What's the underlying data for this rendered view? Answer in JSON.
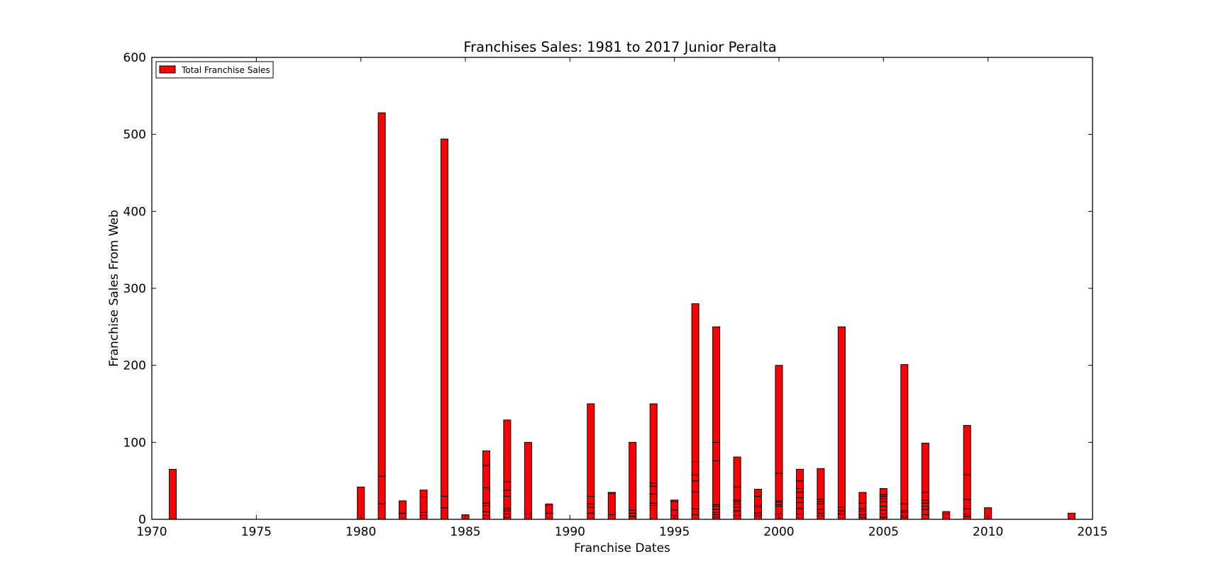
{
  "chart_data": {
    "type": "bar",
    "title": "Franchises Sales: 1981 to 2017 Junior Peralta",
    "xlabel": "Franchise Dates",
    "ylabel": "Franchise Sales From Web",
    "xlim": [
      1970,
      2015
    ],
    "ylim": [
      0,
      600
    ],
    "xticks": [
      "1970",
      "1975",
      "1980",
      "1985",
      "1990",
      "1995",
      "2000",
      "2005",
      "2010",
      "2015"
    ],
    "yticks": [
      "0",
      "100",
      "200",
      "300",
      "400",
      "500",
      "600"
    ],
    "grid": false,
    "legend": {
      "position": "top-left",
      "entries": [
        "Total Franchise Sales"
      ]
    },
    "bar_color": "#ff0000",
    "edge_color": "#000000",
    "series": [
      {
        "name": "Total Franchise Sales",
        "bars": [
          {
            "x": 1971,
            "stack": [
              65
            ]
          },
          {
            "x": 1980,
            "stack": [
              42
            ]
          },
          {
            "x": 1981,
            "stack": [
              20,
              36,
              472
            ]
          },
          {
            "x": 1982,
            "stack": [
              8,
              16
            ]
          },
          {
            "x": 1983,
            "stack": [
              5,
              4,
              20,
              9
            ]
          },
          {
            "x": 1984,
            "stack": [
              15,
              15,
              464
            ]
          },
          {
            "x": 1985,
            "stack": [
              6
            ]
          },
          {
            "x": 1986,
            "stack": [
              5,
              5,
              8,
              3,
              20,
              29,
              19
            ]
          },
          {
            "x": 1987,
            "stack": [
              3,
              4,
              4,
              3,
              16,
              8,
              11,
              80
            ]
          },
          {
            "x": 1988,
            "stack": [
              7,
              93
            ]
          },
          {
            "x": 1989,
            "stack": [
              8,
              10,
              2
            ]
          },
          {
            "x": 1991,
            "stack": [
              8,
              8,
              4,
              10,
              120
            ]
          },
          {
            "x": 1992,
            "stack": [
              6,
              28,
              1
            ]
          },
          {
            "x": 1993,
            "stack": [
              4,
              4,
              4,
              88
            ]
          },
          {
            "x": 1994,
            "stack": [
              18,
              3,
              12,
              10,
              4,
              103
            ]
          },
          {
            "x": 1995,
            "stack": [
              5,
              7,
              11,
              2
            ]
          },
          {
            "x": 1996,
            "stack": [
              6,
              8,
              22,
              14,
              8,
              17,
              205
            ]
          },
          {
            "x": 1997,
            "stack": [
              3,
              3,
              3,
              4,
              4,
              2,
              57,
              24,
              150
            ]
          },
          {
            "x": 1998,
            "stack": [
              5,
              6,
              5,
              4,
              3,
              2,
              17,
              39
            ]
          },
          {
            "x": 1999,
            "stack": [
              5,
              3,
              8,
              2,
              12,
              9
            ]
          },
          {
            "x": 2000,
            "stack": [
              7,
              10,
              2,
              3,
              2,
              36,
              140
            ]
          },
          {
            "x": 2001,
            "stack": [
              7,
              7,
              8,
              6,
              7,
              5,
              10,
              15
            ]
          },
          {
            "x": 2002,
            "stack": [
              5,
              3,
              5,
              7,
              3,
              3,
              40
            ]
          },
          {
            "x": 2003,
            "stack": [
              7,
              4,
              5,
              234
            ]
          },
          {
            "x": 2004,
            "stack": [
              3,
              3,
              5,
              3,
              7,
              14
            ]
          },
          {
            "x": 2005,
            "stack": [
              3,
              4,
              5,
              5,
              6,
              4,
              3,
              2,
              8
            ]
          },
          {
            "x": 2006,
            "stack": [
              3,
              2,
              4,
              2,
              9,
              181
            ]
          },
          {
            "x": 2007,
            "stack": [
              6,
              7,
              4,
              4,
              4,
              10,
              64
            ]
          },
          {
            "x": 2008,
            "stack": [
              7,
              3
            ]
          },
          {
            "x": 2009,
            "stack": [
              4,
              3,
              7,
              12,
              32,
              64
            ]
          },
          {
            "x": 2010,
            "stack": [
              15
            ]
          },
          {
            "x": 2014,
            "stack": [
              8
            ]
          }
        ]
      }
    ]
  }
}
